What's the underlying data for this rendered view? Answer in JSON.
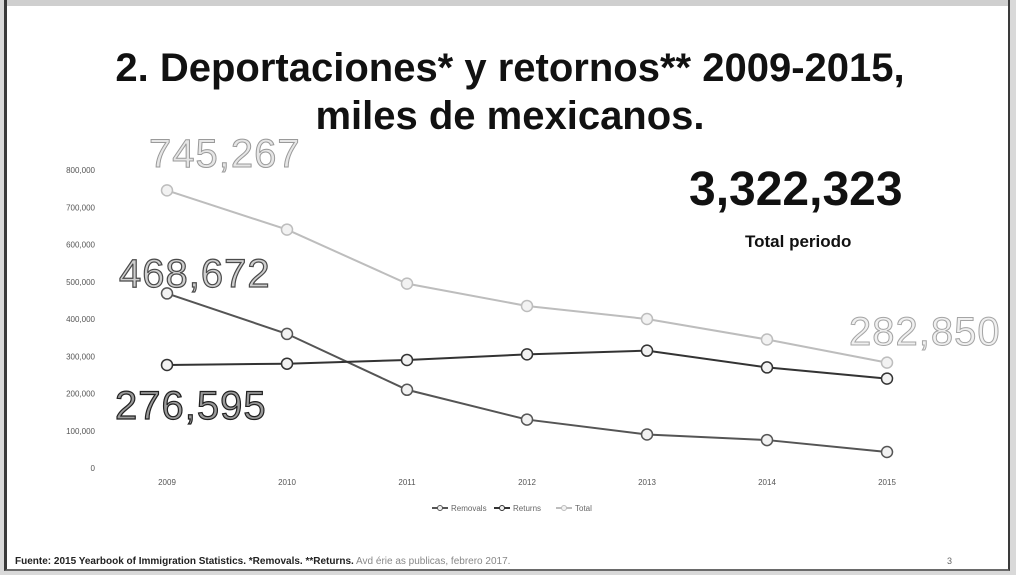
{
  "title_line1": "2. Deportaciones* y retornos** 2009-2015,",
  "title_line2": "miles de mexicanos.",
  "total_value": "3,322,323",
  "total_label": "Total periodo",
  "callouts": {
    "total_first": "745,267",
    "removals_first": "468,672",
    "returns_first": "276,595",
    "total_last": "282,850"
  },
  "footer": {
    "source": "Fuente: 2015 Yearbook of Immigration Statistics. *Removals. **Returns.",
    "note": "Avd érie as publicas, febrero 2017.",
    "page": "3"
  },
  "chart_data": {
    "type": "line",
    "x": [
      "2009",
      "2010",
      "2011",
      "2012",
      "2013",
      "2014",
      "2015"
    ],
    "y_ticks": [
      "0",
      "100,000",
      "200,000",
      "300,000",
      "400,000",
      "500,000",
      "600,000",
      "700,000",
      "800,000"
    ],
    "ylim": [
      0,
      800000
    ],
    "series": [
      {
        "name": "Removals",
        "color": "#555555",
        "values": [
          468672,
          360000,
          210000,
          130000,
          90000,
          75000,
          43000
        ]
      },
      {
        "name": "Returns",
        "color": "#333333",
        "values": [
          276595,
          280000,
          290000,
          305000,
          315000,
          270000,
          240000
        ]
      },
      {
        "name": "Total",
        "color": "#bdbdbd",
        "values": [
          745267,
          640000,
          495000,
          435000,
          400000,
          345000,
          282850
        ]
      }
    ],
    "legend_position": "bottom-center",
    "grid": false
  }
}
